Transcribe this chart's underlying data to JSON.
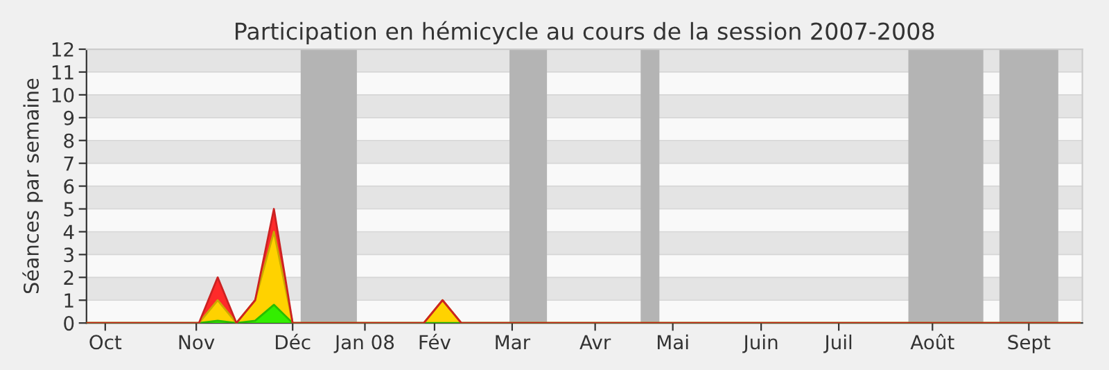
{
  "chart_data": {
    "type": "area",
    "stacked": true,
    "title": "Participation en hémicycle au cours de la session 2007-2008",
    "ylabel": "Séances par semaine",
    "x": [
      "2007-09-24",
      "2007-10-01",
      "2007-10-08",
      "2007-10-15",
      "2007-10-22",
      "2007-10-29",
      "2007-11-05",
      "2007-11-12",
      "2007-11-19",
      "2007-11-26",
      "2007-12-03",
      "2007-12-10",
      "2007-12-17",
      "2007-12-24",
      "2007-12-31",
      "2008-01-07",
      "2008-01-14",
      "2008-01-21",
      "2008-01-28",
      "2008-02-04",
      "2008-02-11",
      "2008-02-18",
      "2008-02-25",
      "2008-03-03",
      "2008-03-10",
      "2008-03-17",
      "2008-03-24",
      "2008-03-31",
      "2008-04-07",
      "2008-04-14",
      "2008-04-21",
      "2008-04-28",
      "2008-05-05",
      "2008-05-12",
      "2008-05-19",
      "2008-05-26",
      "2008-06-02",
      "2008-06-09",
      "2008-06-16",
      "2008-06-23",
      "2008-06-30",
      "2008-07-07",
      "2008-07-14",
      "2008-07-21",
      "2008-07-28",
      "2008-08-04",
      "2008-08-11",
      "2008-08-18",
      "2008-08-25",
      "2008-09-01",
      "2008-09-08",
      "2008-09-15",
      "2008-09-22",
      "2008-09-29"
    ],
    "series": [
      {
        "color": "#33ee00",
        "values": [
          0,
          0,
          0,
          0,
          0,
          0,
          0,
          0.1,
          0,
          0.1,
          0.8,
          0,
          0,
          0,
          0,
          0,
          0,
          0,
          0,
          0,
          0,
          0,
          0,
          0,
          0,
          0,
          0,
          0,
          0,
          0,
          0,
          0,
          0,
          0,
          0,
          0,
          0,
          0,
          0,
          0,
          0,
          0,
          0,
          0,
          0,
          0,
          0,
          0,
          0,
          0,
          0,
          0,
          0,
          0
        ]
      },
      {
        "color": "#ffd200",
        "values": [
          0,
          0,
          0,
          0,
          0,
          0,
          0,
          0.9,
          0,
          0.9,
          3.2,
          0,
          0,
          0,
          0,
          0,
          0,
          0,
          0,
          1,
          0,
          0,
          0,
          0,
          0,
          0,
          0,
          0,
          0,
          0,
          0,
          0,
          0,
          0,
          0,
          0,
          0,
          0,
          0,
          0,
          0,
          0,
          0,
          0,
          0,
          0,
          0,
          0,
          0,
          0,
          0,
          0,
          0,
          0
        ]
      },
      {
        "color": "#ff2a2a",
        "values": [
          0,
          0,
          0,
          0,
          0,
          0,
          0,
          1,
          0,
          0,
          1,
          0,
          0,
          0,
          0,
          0,
          0,
          0,
          0,
          0,
          0,
          0,
          0,
          0,
          0,
          0,
          0,
          0,
          0,
          0,
          0,
          0,
          0,
          0,
          0,
          0,
          0,
          0,
          0,
          0,
          0,
          0,
          0,
          0,
          0,
          0,
          0,
          0,
          0,
          0,
          0,
          0,
          0,
          0
        ]
      }
    ],
    "bands": [
      {
        "axis": "x",
        "from": "2007-12-13",
        "to": "2008-01-03",
        "color": "#b4b4b4"
      },
      {
        "axis": "x",
        "from": "2008-02-29",
        "to": "2008-03-14",
        "color": "#b4b4b4"
      },
      {
        "axis": "x",
        "from": "2008-04-18",
        "to": "2008-04-25",
        "color": "#b4b4b4"
      },
      {
        "axis": "x",
        "from": "2008-07-27",
        "to": "2008-08-24",
        "color": "#b4b4b4"
      },
      {
        "axis": "x",
        "from": "2008-08-30",
        "to": "2008-09-21",
        "color": "#b4b4b4"
      }
    ],
    "xlim": [
      "2007-09-24",
      "2008-09-30"
    ],
    "xticks": [
      {
        "value": "2007-10-01",
        "label": "Oct"
      },
      {
        "value": "2007-11-04",
        "label": "Nov"
      },
      {
        "value": "2007-12-10",
        "label": "Déc"
      },
      {
        "value": "2008-01-06",
        "label": "Jan 08"
      },
      {
        "value": "2008-02-01",
        "label": "Fév"
      },
      {
        "value": "2008-03-01",
        "label": "Mar"
      },
      {
        "value": "2008-04-01",
        "label": "Avr"
      },
      {
        "value": "2008-04-30",
        "label": "Mai"
      },
      {
        "value": "2008-06-02",
        "label": "Juin"
      },
      {
        "value": "2008-07-01",
        "label": "Juil"
      },
      {
        "value": "2008-08-05",
        "label": "Août"
      },
      {
        "value": "2008-09-10",
        "label": "Sept"
      }
    ],
    "ylim": [
      0,
      12
    ],
    "yticks": [
      0,
      1,
      2,
      3,
      4,
      5,
      6,
      7,
      8,
      9,
      10,
      11,
      12
    ],
    "grid": "y"
  }
}
